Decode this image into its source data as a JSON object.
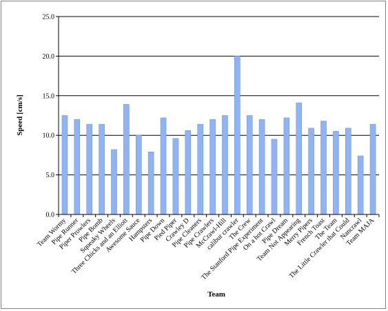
{
  "chart_data": {
    "type": "bar",
    "title": "",
    "xlabel": "Team",
    "ylabel": "Speed [cm/s]",
    "ylim": [
      0,
      25
    ],
    "yticks": [
      "0.0",
      "5.0",
      "10.0",
      "15.0",
      "20.0",
      "25.0"
    ],
    "grid": true,
    "legend": "none",
    "categories": [
      "Team Wormy",
      "Pipe Runner",
      "Piper Prowlers",
      "Pipe Bomb",
      "Squeaky Wheels",
      "Three Chicks and an Elliott",
      "Awesome Sauce",
      "Hampsters",
      "Pipe Down",
      "Pied Piper",
      "Crawley D",
      "Pipe Cleaners",
      "Pipe Crawlers",
      "McCrawl-Hill",
      "calibur crawler",
      "The Crew",
      "The Stanford Pipe Experiment",
      "On a hot Crawl",
      "Pipe Dream",
      "Team Not Appearing",
      "Merry Pipers",
      "French Toast",
      "The Team",
      "The Little Crawler that Could",
      "Nancrawl",
      "Team MAJA"
    ],
    "values": [
      12.5,
      12.0,
      11.4,
      11.4,
      8.2,
      13.9,
      10.0,
      7.9,
      12.2,
      9.6,
      10.6,
      11.4,
      12.0,
      12.5,
      20.0,
      12.5,
      12.0,
      9.5,
      12.2,
      14.1,
      10.9,
      11.8,
      10.5,
      10.9,
      7.4,
      11.4
    ],
    "colors": {
      "bar": "#8fb3f5",
      "bar_edge": "#6f95de",
      "grid": "#000000"
    }
  }
}
